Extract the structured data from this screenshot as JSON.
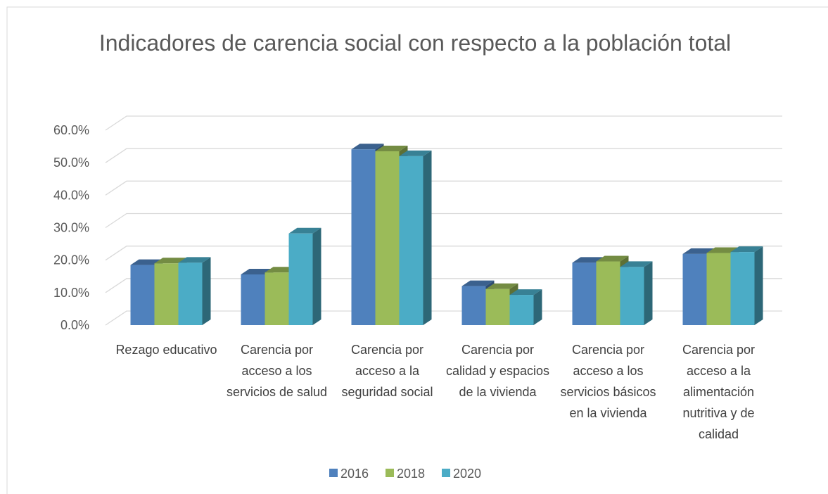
{
  "chart_data": {
    "type": "bar",
    "title": "Indicadores de carencia social con respecto a la población total",
    "categories": [
      "Rezago educativo",
      "Carencia por acceso a los servicios de salud",
      "Carencia por acceso a la seguridad social",
      "Carencia por calidad y espacios de la vivienda",
      "Carencia por acceso a los servicios básicos en la vivienda",
      "Carencia por acceso a la alimentación nutritiva y de calidad"
    ],
    "series": [
      {
        "name": "2016",
        "color": "#4f81bd",
        "values": [
          18.5,
          15.6,
          54.1,
          12.0,
          19.2,
          21.9
        ]
      },
      {
        "name": "2018",
        "color": "#9bbb59",
        "values": [
          19.0,
          16.2,
          53.5,
          11.1,
          19.6,
          22.2
        ]
      },
      {
        "name": "2020",
        "color": "#4bacc6",
        "values": [
          19.2,
          28.2,
          52.0,
          9.3,
          17.9,
          22.5
        ]
      }
    ],
    "ylim": [
      0,
      60
    ],
    "yticks": [
      {
        "value": 0,
        "label": "0.0%"
      },
      {
        "value": 10,
        "label": "10.0%"
      },
      {
        "value": 20,
        "label": "20.0%"
      },
      {
        "value": 30,
        "label": "30.0%"
      },
      {
        "value": 40,
        "label": "40.0%"
      },
      {
        "value": 50,
        "label": "50.0%"
      },
      {
        "value": 60,
        "label": "60.0%"
      }
    ],
    "grid": true,
    "legend": "bottom"
  }
}
